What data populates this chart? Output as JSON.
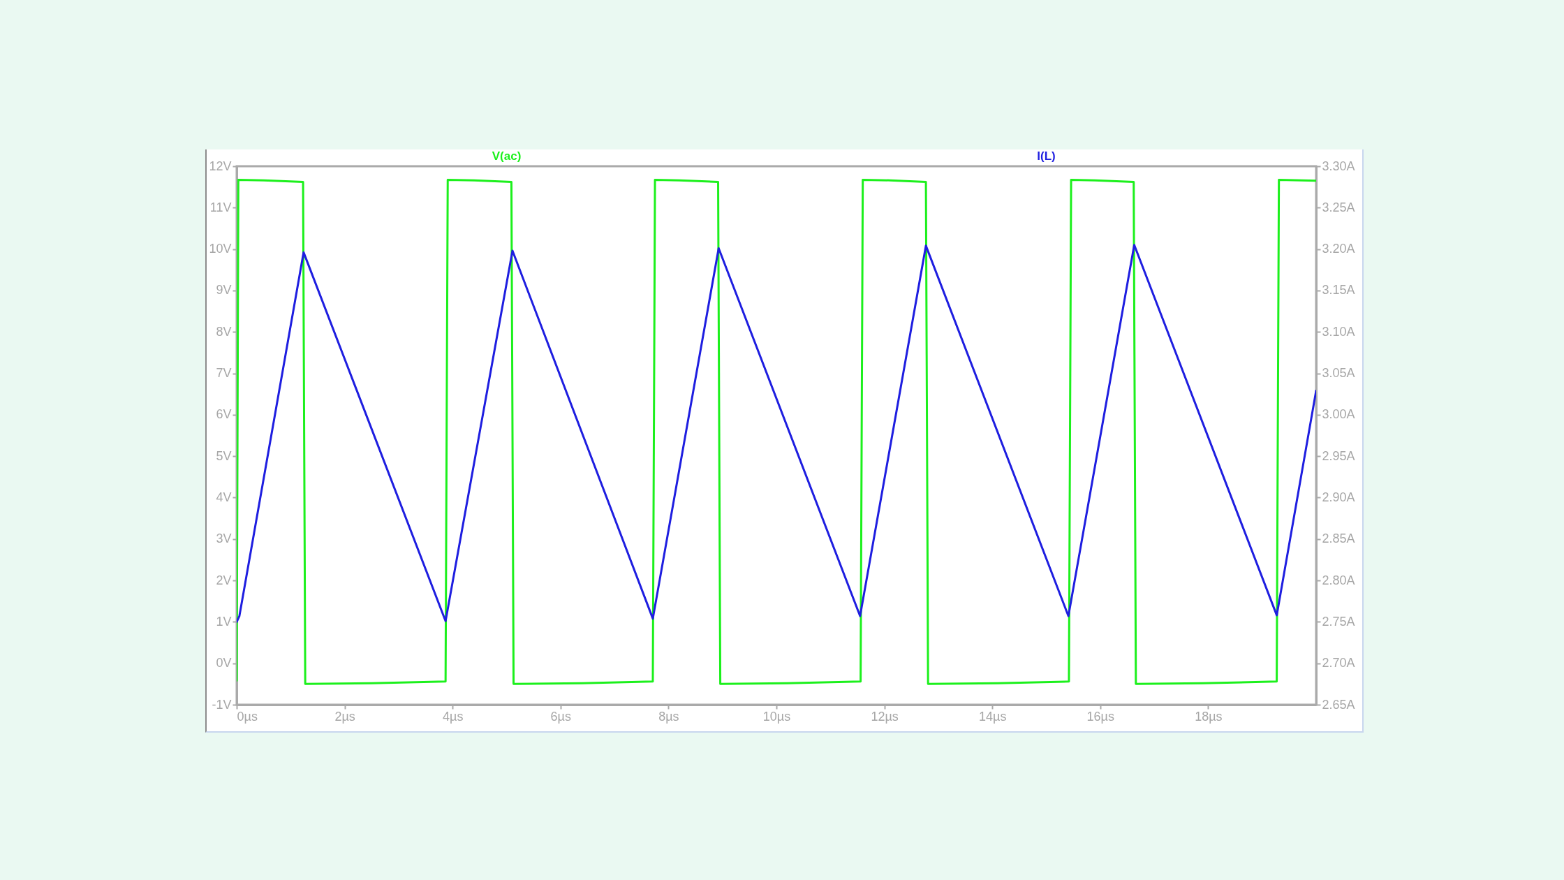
{
  "chart_data": {
    "type": "line",
    "legend": "top",
    "xlim": [
      0,
      20
    ],
    "xticks": [
      {
        "value": 0,
        "label": "0µs"
      },
      {
        "value": 2,
        "label": "2µs"
      },
      {
        "value": 4,
        "label": "4µs"
      },
      {
        "value": 6,
        "label": "6µs"
      },
      {
        "value": 8,
        "label": "8µs"
      },
      {
        "value": 10,
        "label": "10µs"
      },
      {
        "value": 12,
        "label": "12µs"
      },
      {
        "value": 14,
        "label": "14µs"
      },
      {
        "value": 16,
        "label": "16µs"
      },
      {
        "value": 18,
        "label": "18µs"
      }
    ],
    "ylim": [
      -1,
      12
    ],
    "yticks": [
      {
        "value": -1,
        "label": "-1V"
      },
      {
        "value": 0,
        "label": "0V"
      },
      {
        "value": 1,
        "label": "1V"
      },
      {
        "value": 2,
        "label": "2V"
      },
      {
        "value": 3,
        "label": "3V"
      },
      {
        "value": 4,
        "label": "4V"
      },
      {
        "value": 5,
        "label": "5V"
      },
      {
        "value": 6,
        "label": "6V"
      },
      {
        "value": 7,
        "label": "7V"
      },
      {
        "value": 8,
        "label": "8V"
      },
      {
        "value": 9,
        "label": "9V"
      },
      {
        "value": 10,
        "label": "10V"
      },
      {
        "value": 11,
        "label": "11V"
      },
      {
        "value": 12,
        "label": "12V"
      }
    ],
    "y2lim": [
      2.65,
      3.3
    ],
    "y2ticks": [
      {
        "value": 2.65,
        "label": "2.65A"
      },
      {
        "value": 2.7,
        "label": "2.70A"
      },
      {
        "value": 2.75,
        "label": "2.75A"
      },
      {
        "value": 2.8,
        "label": "2.80A"
      },
      {
        "value": 2.85,
        "label": "2.85A"
      },
      {
        "value": 2.9,
        "label": "2.90A"
      },
      {
        "value": 2.95,
        "label": "2.95A"
      },
      {
        "value": 3.0,
        "label": "3.00A"
      },
      {
        "value": 3.05,
        "label": "3.05A"
      },
      {
        "value": 3.1,
        "label": "3.10A"
      },
      {
        "value": 3.15,
        "label": "3.15A"
      },
      {
        "value": 3.2,
        "label": "3.20A"
      },
      {
        "value": 3.25,
        "label": "3.25A"
      },
      {
        "value": 3.3,
        "label": "3.30A"
      }
    ],
    "series": [
      {
        "name": "V(ac)",
        "color": "#1cf01c",
        "x": [
          0,
          0.03,
          0.5,
          1.23,
          1.27,
          2.5,
          3.87,
          3.91,
          4.4,
          5.09,
          5.13,
          6.4,
          7.71,
          7.75,
          8.2,
          8.92,
          8.96,
          10.2,
          11.56,
          11.6,
          12.1,
          12.77,
          12.81,
          14.1,
          15.42,
          15.46,
          15.9,
          16.62,
          16.66,
          17.9,
          19.27,
          19.31,
          20
        ],
        "values": [
          -0.42,
          11.67,
          11.66,
          11.62,
          -0.5,
          -0.48,
          -0.44,
          11.67,
          11.66,
          11.62,
          -0.5,
          -0.48,
          -0.44,
          11.67,
          11.66,
          11.62,
          -0.5,
          -0.48,
          -0.44,
          11.67,
          11.66,
          11.62,
          -0.5,
          -0.48,
          -0.44,
          11.67,
          11.66,
          11.62,
          -0.5,
          -0.48,
          -0.44,
          11.67,
          11.65
        ]
      },
      {
        "name": "I(L)",
        "color": "#1e1ee0",
        "axis": "y2",
        "x": [
          0,
          0.05,
          1.24,
          3.87,
          5.11,
          7.71,
          8.93,
          11.55,
          12.77,
          15.41,
          16.63,
          19.27,
          20
        ],
        "values": [
          2.75,
          2.757,
          3.196,
          2.751,
          3.198,
          2.754,
          3.201,
          2.757,
          3.204,
          2.757,
          3.205,
          2.758,
          3.029
        ]
      }
    ]
  }
}
